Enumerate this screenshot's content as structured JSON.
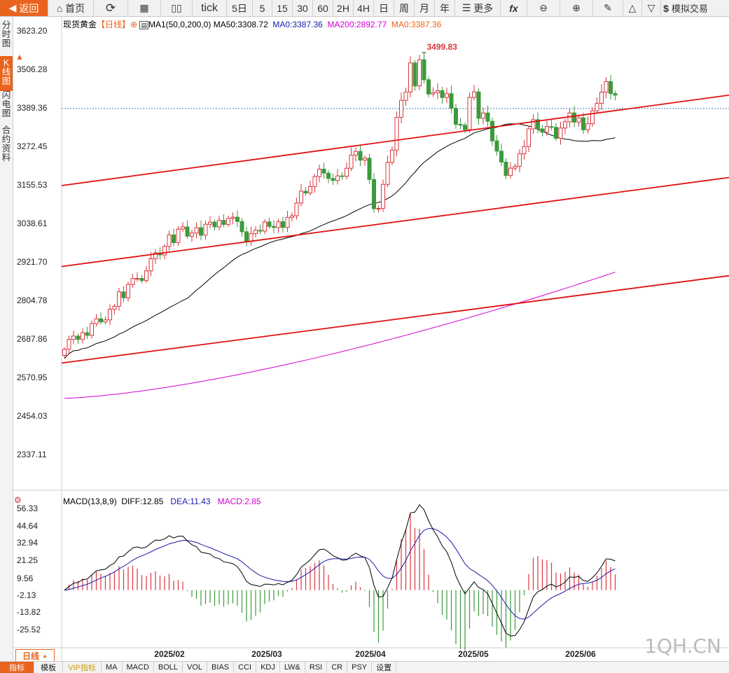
{
  "toolbar": {
    "back": "返回",
    "home": "首页",
    "items": [
      "tick",
      "5日",
      "5",
      "15",
      "30",
      "60",
      "2H",
      "4H",
      "日",
      "周",
      "月",
      "年"
    ],
    "more": "更多",
    "trade": "模拟交易"
  },
  "sidebar": {
    "tabs": [
      "分时图",
      "K线图",
      "闪电图",
      "合约资料"
    ]
  },
  "legend": {
    "title": "现货黄金",
    "period": "【日线】",
    "ma_name": "MA1(50,0,200,0)",
    "ma50": "MA50:3308.72",
    "ma0_a": "MA0:3387.36",
    "ma200": "MA200:2892.77",
    "ma0_b": "MA0:3387.36"
  },
  "macd_legend": {
    "name": "MACD(13,8,9)",
    "diff": "DIFF:12.85",
    "dea": "DEA:11.43",
    "macd": "MACD:2.85"
  },
  "bottom": {
    "period": "日线",
    "tabs": [
      "指标",
      "模板",
      "VIP指标",
      "MA",
      "MACD",
      "BOLL",
      "VOL",
      "BIAS",
      "CCI",
      "KDJ",
      "LW&",
      "RSI",
      "CR",
      "PSY",
      "设置"
    ]
  },
  "watermark": "1QH.CN",
  "colors": {
    "up": "#d9363e",
    "down": "#3c9a3c",
    "ma50": "#000000",
    "ma200": "#d400d4",
    "dea": "#1a1aa8",
    "accent": "#e8641e"
  },
  "chart_data": [
    {
      "type": "candlestick",
      "ylim": [
        2337.11,
        3623.2
      ],
      "yticks": [
        3623.2,
        3506.28,
        3389.36,
        3272.45,
        3155.53,
        3038.61,
        2921.7,
        2804.78,
        2687.86,
        2570.95,
        2454.03,
        2337.11
      ],
      "x_ticks": [
        "2025/02",
        "2025/03",
        "2025/04",
        "2025/05",
        "2025/06"
      ],
      "current_price": 3389.36,
      "peak_label": "3499.83",
      "start": [
        2650,
        2640
      ],
      "returns": [
        0.0033,
        0.0112,
        0.0038,
        -0.0038,
        0.0076,
        -0.003,
        0.0133,
        0.0053,
        -0.0035,
        0.0023,
        0.0117,
        0.0033,
        0.0157,
        -0.0064,
        0.0143,
        0.0064,
        0.0001,
        -0.0023,
        0.0103,
        0.0127,
        0.0061,
        -0.0021,
        0.0087,
        0.0118,
        -0.0078,
        0.0138,
        0.0022,
        -0.0093,
        0.0032,
        0.0054,
        -0.0076,
        0.0111,
        0.0022,
        -0.0048,
        0.0065,
        -0.004,
        0.006,
        0.0012,
        -0.0043,
        -0.0102,
        -0.0099,
        0.0081,
        0.0034,
        -0.0009,
        0.0093,
        -0.0045,
        -0.0011,
        0.0058,
        -0.0057,
        0.0101,
        0.0016,
        0.0126,
        0.0116,
        -0.0018,
        0.0062,
        0.0097,
        0.0071,
        -0.0038,
        -0.0051,
        -0.0019,
        0.0044,
        -0.0004,
        0.0077,
        0.0124,
        0.0035,
        -0.0082,
        0.0019,
        -0.02,
        -0.0279,
        0.0003,
        0.0236,
        0.0211,
        0.0116,
        0.0305,
        0.0153,
        0.0074,
        0.0257,
        -0.0198,
        0.023,
        -0.0172,
        -0.0124,
        0.0012,
        0.0017,
        -0.006,
        0.0034,
        -0.0129,
        -0.0144,
        -0.0008,
        -0.004,
        0.0294,
        0.0049,
        -0.0233,
        0.0048,
        -0.0075,
        -0.0177,
        -0.0095,
        -0.0102,
        -0.0126,
        0.007,
        0.0018,
        0.0117,
        0.0068,
        0.0164,
        0.0084,
        -0.0083,
        -0.0031,
        0.0052,
        -0.0007,
        -0.01,
        0.0095,
        0.0057,
        0.008,
        -0.0083,
        0.0039,
        -0.0108,
        0.0056,
        0.0117,
        0.0067,
        0.01,
        0.0093,
        -0.0105,
        -0.0014
      ],
      "channels": [
        {
          "from": 3155.53,
          "to": 3430
        },
        {
          "from": 2910,
          "to": 3180
        },
        {
          "from": 2617,
          "to": 2882
        }
      ]
    },
    {
      "type": "macd",
      "ylim": [
        -31.0,
        62.5
      ],
      "yticks": [
        56.33,
        44.64,
        32.94,
        21.25,
        9.56,
        -2.13,
        -13.82,
        -25.52
      ],
      "diff_last": 12.85,
      "dea_last": 11.43,
      "macd_last": 2.85
    }
  ]
}
